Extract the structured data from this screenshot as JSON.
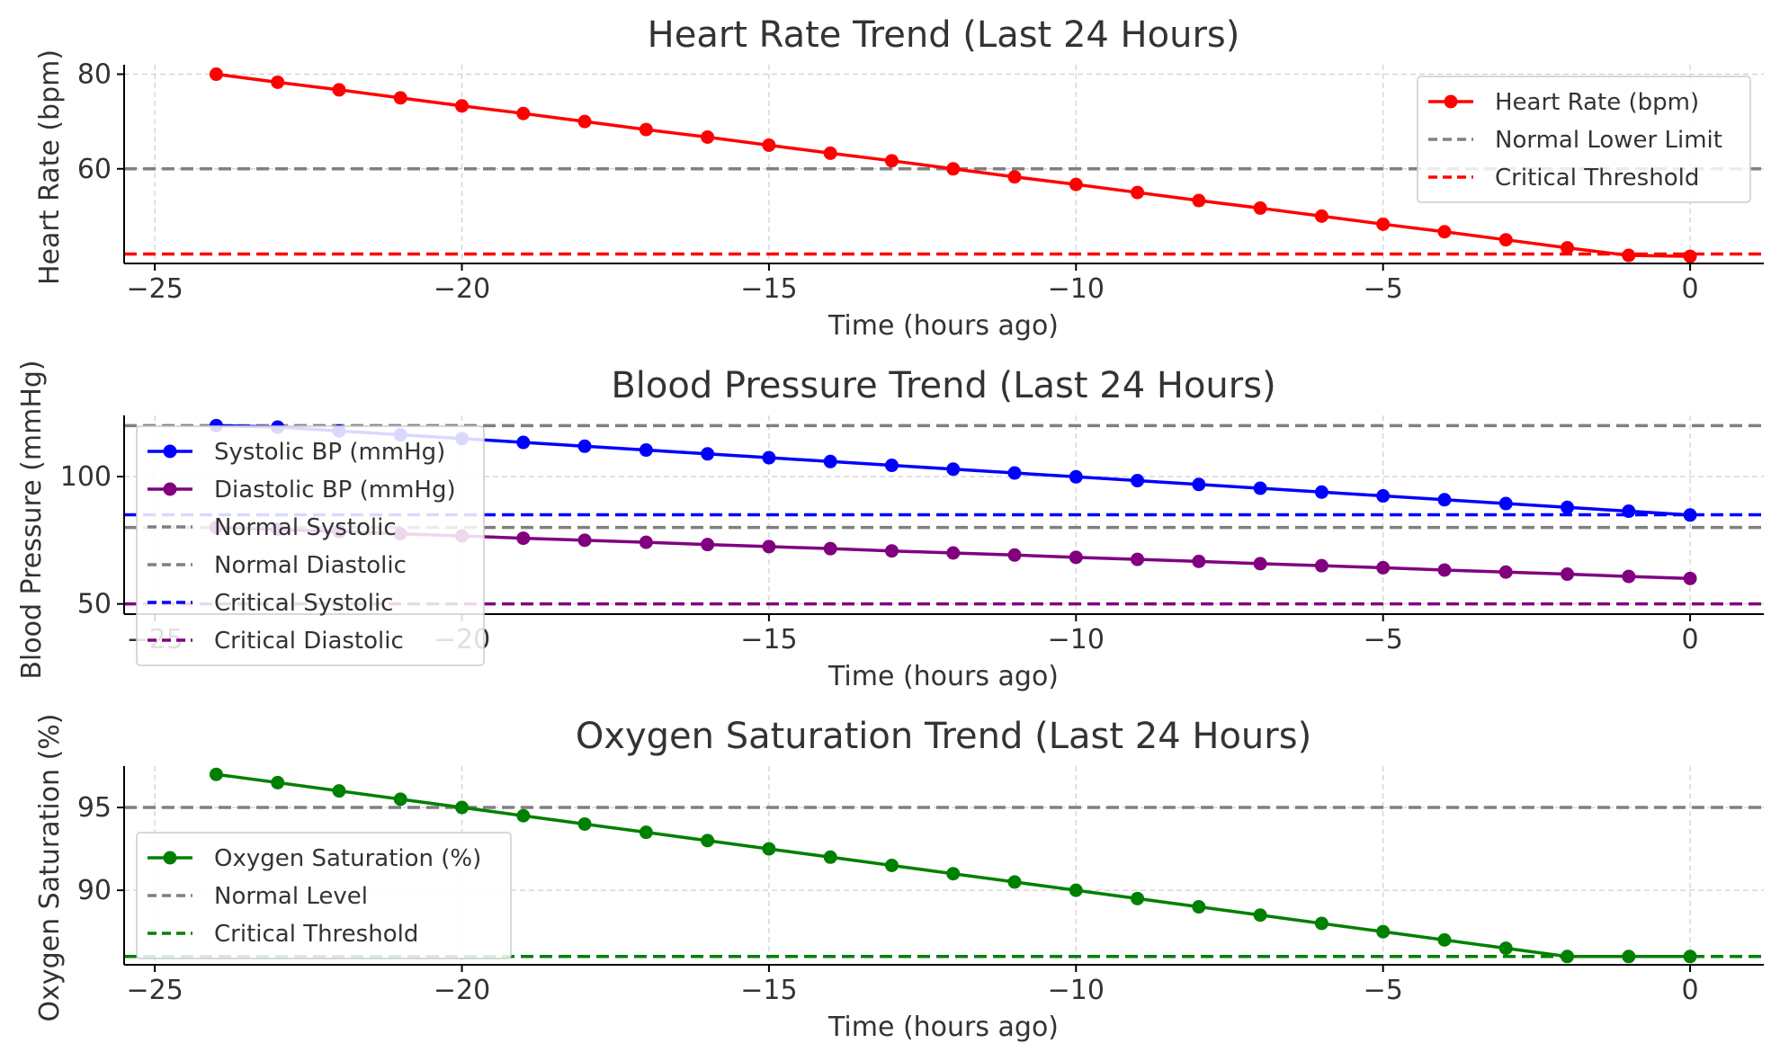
{
  "chart_data": [
    {
      "type": "line",
      "title": "Heart Rate Trend (Last 24 Hours)",
      "xlabel": "Time (hours ago)",
      "ylabel": "Heart Rate (bpm)",
      "xlim": [
        -25.5,
        1.2
      ],
      "ylim": [
        40,
        82
      ],
      "xticks": [
        -25,
        -20,
        -15,
        -10,
        -5,
        0
      ],
      "xtick_labels": [
        "−25",
        "−20",
        "−15",
        "−10",
        "−5",
        "0"
      ],
      "yticks": [
        60,
        80
      ],
      "ytick_labels": [
        "60",
        "80"
      ],
      "grid": true,
      "legend_position": "upper right",
      "x": [
        -24,
        -23,
        -22,
        -21,
        -20,
        -19,
        -18,
        -17,
        -16,
        -15,
        -14,
        -13,
        -12,
        -11,
        -10,
        -9,
        -8,
        -7,
        -6,
        -5,
        -4,
        -3,
        -2,
        -1,
        0
      ],
      "series": [
        {
          "name": "Heart Rate (bpm)",
          "color": "#ff0000",
          "style": "line-marker",
          "values": [
            80,
            78.3,
            76.7,
            75,
            73.3,
            71.7,
            70,
            68.3,
            66.7,
            65,
            63.3,
            61.7,
            60,
            58.3,
            56.7,
            55,
            53.3,
            51.7,
            50,
            48.3,
            46.7,
            45,
            43.3,
            41.7,
            41.5
          ]
        }
      ],
      "reference_lines": [
        {
          "name": "Normal Lower Limit",
          "value": 60,
          "color": "#808080"
        },
        {
          "name": "Critical Threshold",
          "value": 42,
          "color": "#ff0000"
        }
      ]
    },
    {
      "type": "line",
      "title": "Blood Pressure Trend (Last 24 Hours)",
      "xlabel": "Time (hours ago)",
      "ylabel": "Blood Pressure (mmHg)",
      "xlim": [
        -25.5,
        1.2
      ],
      "ylim": [
        46,
        124
      ],
      "xticks": [
        -25,
        -20,
        -15,
        -10,
        -5,
        0
      ],
      "xtick_labels": [
        "−25",
        "−20",
        "−15",
        "−10",
        "−5",
        "0"
      ],
      "yticks": [
        50,
        100
      ],
      "ytick_labels": [
        "50",
        "100"
      ],
      "grid": true,
      "legend_position": "upper left",
      "x": [
        -24,
        -23,
        -22,
        -21,
        -20,
        -19,
        -18,
        -17,
        -16,
        -15,
        -14,
        -13,
        -12,
        -11,
        -10,
        -9,
        -8,
        -7,
        -6,
        -5,
        -4,
        -3,
        -2,
        -1,
        0
      ],
      "series": [
        {
          "name": "Systolic BP (mmHg)",
          "color": "#0000ff",
          "style": "line-marker",
          "values": [
            120,
            119.4,
            117.9,
            116.4,
            114.9,
            113.4,
            111.9,
            110.4,
            108.9,
            107.4,
            105.9,
            104.4,
            102.9,
            101.4,
            99.9,
            98.4,
            96.9,
            95.4,
            93.9,
            92.4,
            90.9,
            89.4,
            87.9,
            86.4,
            84.9
          ]
        },
        {
          "name": "Diastolic BP (mmHg)",
          "color": "#800080",
          "style": "line-marker",
          "values": [
            80,
            79.2,
            78.4,
            77.5,
            76.7,
            75.8,
            75,
            74.2,
            73.3,
            72.5,
            71.7,
            70.8,
            70,
            69.2,
            68.3,
            67.5,
            66.7,
            65.8,
            65,
            64.2,
            63.3,
            62.5,
            61.7,
            60.8,
            60
          ]
        }
      ],
      "reference_lines": [
        {
          "name": "Normal Systolic",
          "value": 120,
          "color": "#808080"
        },
        {
          "name": "Normal Diastolic",
          "value": 80,
          "color": "#808080"
        },
        {
          "name": "Critical Systolic",
          "value": 85,
          "color": "#0000ff"
        },
        {
          "name": "Critical Diastolic",
          "value": 50,
          "color": "#800080"
        }
      ]
    },
    {
      "type": "line",
      "title": "Oxygen Saturation Trend (Last 24 Hours)",
      "xlabel": "Time (hours ago)",
      "ylabel": "Oxygen Saturation (%)",
      "xlim": [
        -25.5,
        1.2
      ],
      "ylim": [
        85.5,
        97.5
      ],
      "xticks": [
        -25,
        -20,
        -15,
        -10,
        -5,
        0
      ],
      "xtick_labels": [
        "−25",
        "−20",
        "−15",
        "−10",
        "−5",
        "0"
      ],
      "yticks": [
        90,
        95
      ],
      "ytick_labels": [
        "90",
        "95"
      ],
      "grid": true,
      "legend_position": "center left",
      "x": [
        -24,
        -23,
        -22,
        -21,
        -20,
        -19,
        -18,
        -17,
        -16,
        -15,
        -14,
        -13,
        -12,
        -11,
        -10,
        -9,
        -8,
        -7,
        -6,
        -5,
        -4,
        -3,
        -2,
        -1,
        0
      ],
      "series": [
        {
          "name": "Oxygen Saturation (%)",
          "color": "#008000",
          "style": "line-marker",
          "values": [
            97,
            96.5,
            96,
            95.5,
            95,
            94.5,
            94,
            93.5,
            93,
            92.5,
            92,
            91.5,
            91,
            90.5,
            90,
            89.5,
            89,
            88.5,
            88,
            87.5,
            87,
            86.5,
            86,
            86,
            86
          ]
        }
      ],
      "reference_lines": [
        {
          "name": "Normal Level",
          "value": 95,
          "color": "#808080"
        },
        {
          "name": "Critical Threshold",
          "value": 86,
          "color": "#008000"
        }
      ]
    }
  ]
}
